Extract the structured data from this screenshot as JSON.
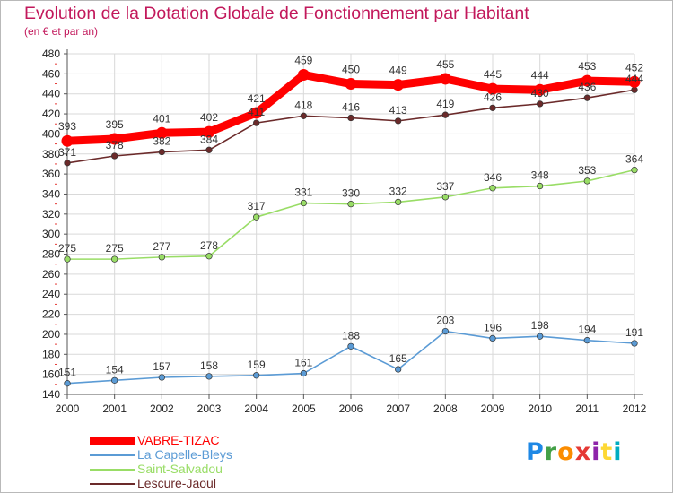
{
  "title": "Evolution de la Dotation Globale de Fonctionnement par Habitant",
  "subtitle": "(en € et par an)",
  "logo": {
    "text": "Proxiti",
    "letter_colors": [
      "#1e88e5",
      "#43a047",
      "#fb8c00",
      "#e53935",
      "#8e24aa",
      "#fdd835",
      "#00acc1"
    ]
  },
  "chart_data": {
    "type": "line",
    "x": [
      2000,
      2001,
      2002,
      2003,
      2004,
      2005,
      2006,
      2007,
      2008,
      2009,
      2010,
      2011,
      2012
    ],
    "ylim": [
      140,
      480
    ],
    "yticks": [
      140,
      160,
      180,
      200,
      220,
      240,
      260,
      280,
      300,
      320,
      340,
      360,
      380,
      400,
      420,
      440,
      460,
      480
    ],
    "grid": true,
    "legend_position": "bottom-left",
    "series": [
      {
        "name": "VABRE-TIZAC",
        "color": "#ff0000",
        "values": [
          393,
          395,
          401,
          402,
          421,
          459,
          450,
          449,
          455,
          445,
          444,
          453,
          452
        ]
      },
      {
        "name": "La Capelle-Bleys",
        "color": "#5b9bd5",
        "values": [
          151,
          154,
          157,
          158,
          159,
          161,
          188,
          165,
          203,
          196,
          198,
          194,
          191
        ]
      },
      {
        "name": "Saint-Salvadou",
        "color": "#99dd66",
        "values": [
          275,
          275,
          277,
          278,
          317,
          331,
          330,
          332,
          337,
          346,
          348,
          353,
          364
        ]
      },
      {
        "name": "Lescure-Jaoul",
        "color": "#6b2a2a",
        "values": [
          371,
          378,
          382,
          384,
          411,
          418,
          416,
          413,
          419,
          426,
          430,
          436,
          444
        ]
      }
    ]
  }
}
